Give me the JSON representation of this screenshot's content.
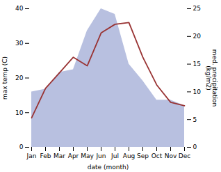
{
  "chart_data": {
    "type": "line",
    "categories": [
      "Jan",
      "Feb",
      "Mar",
      "Apr",
      "May",
      "Jun",
      "Jul",
      "Aug",
      "Sep",
      "Oct",
      "Nov",
      "Dec"
    ],
    "xlabel": "date (month)",
    "ylabel": "max temp (C)",
    "y2label": "med. precipitation\n(kg/m2)",
    "ylim": [
      0,
      40
    ],
    "yticks": [
      0,
      10,
      20,
      30,
      40
    ],
    "y2lim": [
      0,
      25
    ],
    "y2ticks": [
      0,
      5,
      10,
      15,
      20,
      25
    ],
    "grid": false,
    "series": [
      {
        "type": "area",
        "axis": "y2",
        "color": "#b8c0e0",
        "values": [
          10.0,
          10.5,
          13.5,
          14.0,
          21.0,
          25.0,
          24.0,
          15.0,
          12.0,
          8.5,
          8.5,
          7.5
        ]
      },
      {
        "type": "line",
        "color": "#993333",
        "values": [
          8.5,
          17.0,
          21.5,
          26.0,
          23.5,
          33.0,
          35.5,
          36.0,
          26.0,
          18.0,
          13.0,
          12.0
        ]
      }
    ]
  }
}
